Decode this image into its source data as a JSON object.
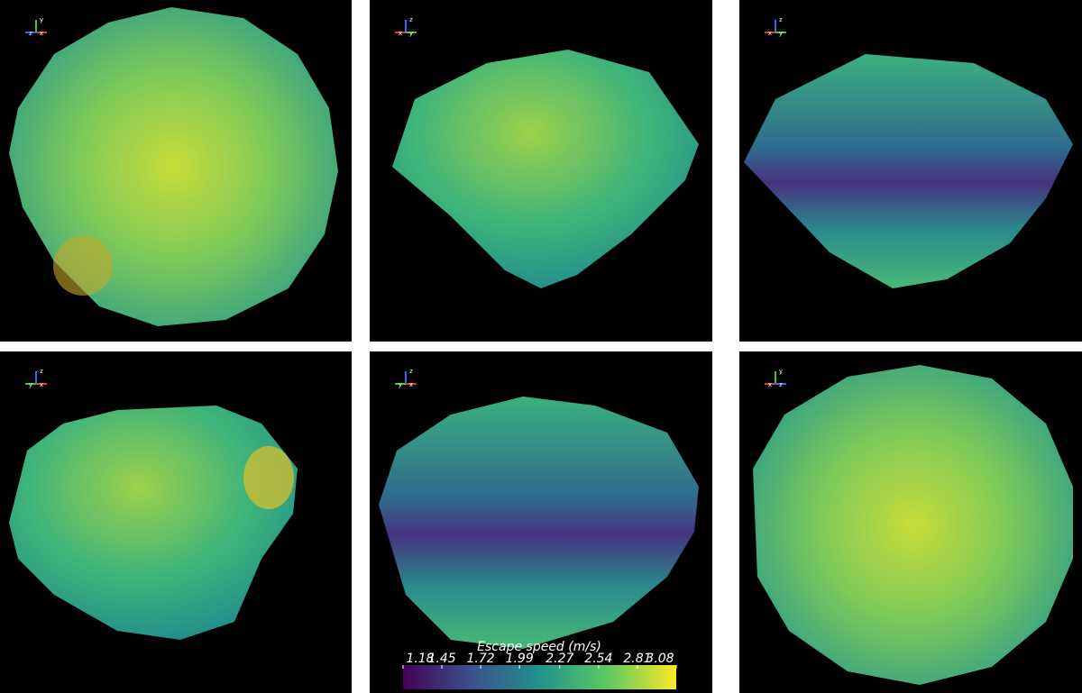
{
  "panels": [
    {
      "axes": [
        "y",
        "z",
        "x"
      ]
    },
    {
      "axes": [
        "z",
        "x",
        "y"
      ]
    },
    {
      "axes": [
        "z",
        "x",
        "y"
      ]
    },
    {
      "axes": [
        "z",
        "y",
        "x"
      ]
    },
    {
      "axes": [
        "z",
        "y",
        "x"
      ]
    },
    {
      "axes": [
        "y",
        "x",
        "z"
      ]
    }
  ],
  "colorbar": {
    "title": "Escape speed (m/s)",
    "range": [
      1.18,
      3.08
    ],
    "ticks": [
      1.18,
      1.45,
      1.72,
      1.99,
      2.27,
      2.54,
      2.81,
      3.08
    ]
  }
}
